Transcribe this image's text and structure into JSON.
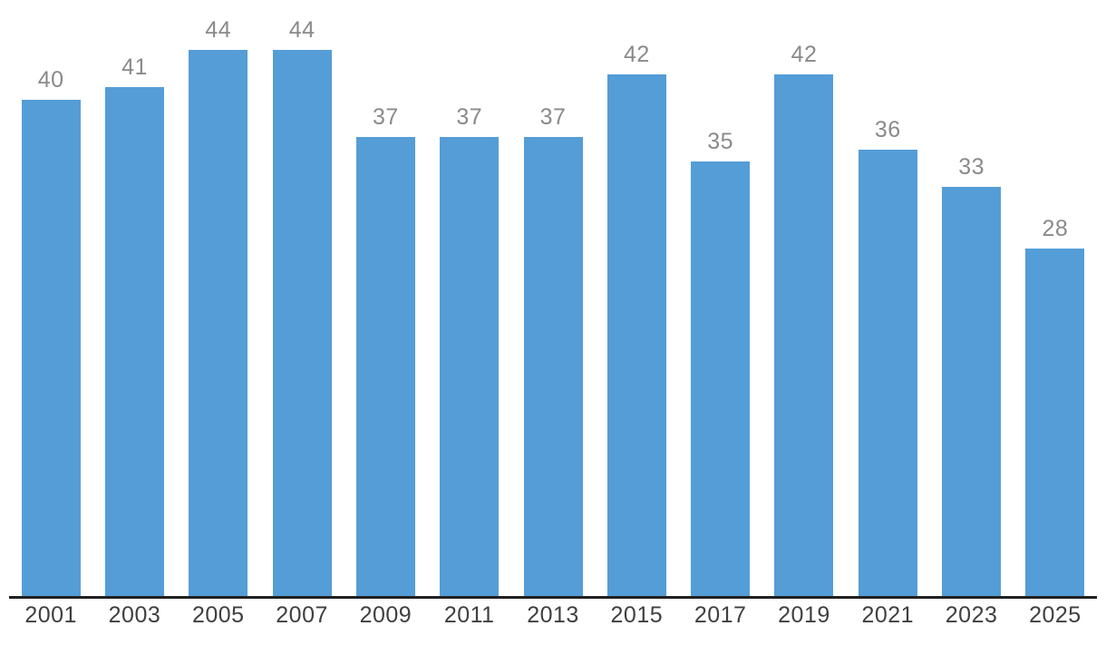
{
  "chart_data": {
    "type": "bar",
    "categories": [
      "2001",
      "2003",
      "2005",
      "2007",
      "2009",
      "2011",
      "2013",
      "2015",
      "2017",
      "2019",
      "2021",
      "2023",
      "2025"
    ],
    "values": [
      40,
      41,
      44,
      44,
      37,
      37,
      37,
      42,
      35,
      42,
      36,
      33,
      28
    ],
    "value_labels": [
      "40",
      "41",
      "44",
      "44",
      "37",
      "37",
      "37",
      "42",
      "35",
      "42",
      "36",
      "33",
      "28"
    ],
    "xlabel": "",
    "ylabel": "",
    "ylim": [
      0,
      47
    ],
    "grid": false,
    "legend": "none",
    "value_labels_shown": true,
    "colors": {
      "bar": "#549dd7",
      "value_label": "#8a8a8a",
      "axis_tick_label": "#3f3f3f",
      "axis_line": "#212121",
      "background": "#ffffff"
    }
  }
}
